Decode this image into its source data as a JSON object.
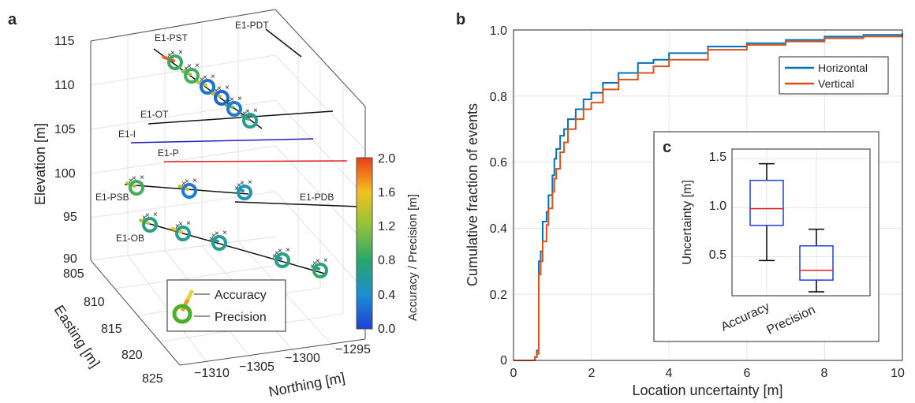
{
  "figure": {
    "panels": [
      "a",
      "b",
      "c"
    ]
  },
  "chart_data": [
    {
      "panel": "a",
      "type": "scatter",
      "zlabel": "Elevation [m]",
      "xlabel": "Easting [m]",
      "ylabel": "Northing [m]",
      "zlim": [
        90,
        115
      ],
      "zticks": [
        "115",
        "110",
        "105",
        "100",
        "95",
        "90"
      ],
      "easting_ticks": [
        "805",
        "810",
        "815",
        "820",
        "825"
      ],
      "northing_ticks": [
        "−1310",
        "−1305",
        "−1300",
        "−1295"
      ],
      "grid": true,
      "colorbar": {
        "label": "Accuracy / Precision [m]",
        "ticks": [
          "0.0",
          "0.4",
          "0.8",
          "1.2",
          "1.6",
          "2.0"
        ],
        "range": [
          0,
          2.0
        ]
      },
      "wells": [
        "E1-PST",
        "E1-PDT",
        "E1-OT",
        "E1-I",
        "E1-P",
        "E1-PSB",
        "E1-PDB",
        "E1-OB"
      ],
      "well_colors": {
        "E1-I": "#1f1fbf",
        "E1-P": "#e02020",
        "others": "#111111"
      },
      "sensors": [
        {
          "well": "E1-PST",
          "precision": 0.85,
          "accuracy": 1.9
        },
        {
          "well": "E1-PST",
          "precision": 0.9,
          "accuracy": 1.2
        },
        {
          "well": "E1-PST",
          "precision": 0.25,
          "accuracy": 1.4
        },
        {
          "well": "E1-PST",
          "precision": 0.2,
          "accuracy": 1.3
        },
        {
          "well": "E1-PST",
          "precision": 0.3,
          "accuracy": 1.0
        },
        {
          "well": "E1-PST",
          "precision": 0.65,
          "accuracy": 0.9
        },
        {
          "well": "E1-PSB",
          "precision": 0.9,
          "accuracy": 1.3
        },
        {
          "well": "E1-PSB",
          "precision": 0.3,
          "accuracy": 1.4
        },
        {
          "well": "E1-PSB",
          "precision": 0.5,
          "accuracy": 0.5
        },
        {
          "well": "E1-OB",
          "precision": 0.7,
          "accuracy": 1.4
        },
        {
          "well": "E1-OB",
          "precision": 0.65,
          "accuracy": 1.6
        },
        {
          "well": "E1-OB",
          "precision": 0.65,
          "accuracy": 0.6
        },
        {
          "well": "E1-OB",
          "precision": 0.7,
          "accuracy": 0.5
        },
        {
          "well": "E1-OB",
          "precision": 0.8,
          "accuracy": 0.6
        }
      ],
      "legend": {
        "items": [
          "Accuracy",
          "Precision"
        ],
        "placement": "bottom-center"
      }
    },
    {
      "panel": "b",
      "type": "line",
      "step": true,
      "xlabel": "Location uncertainty [m]",
      "ylabel": "Cumulative fraction of events",
      "xlim": [
        0,
        10
      ],
      "ylim": [
        0,
        1.0
      ],
      "xticks": [
        "0",
        "2",
        "4",
        "6",
        "8",
        "10"
      ],
      "yticks": [
        "0",
        "0.2",
        "0.4",
        "0.6",
        "0.8",
        "1.0"
      ],
      "grid": true,
      "legend_placement": "top-right",
      "series": [
        {
          "name": "Horizontal",
          "color": "#0072bd",
          "points": [
            [
              0,
              0
            ],
            [
              0.5,
              0
            ],
            [
              0.55,
              0.01
            ],
            [
              0.6,
              0.03
            ],
            [
              0.65,
              0.3
            ],
            [
              0.7,
              0.33
            ],
            [
              0.75,
              0.42
            ],
            [
              0.85,
              0.45
            ],
            [
              0.9,
              0.5
            ],
            [
              1.0,
              0.56
            ],
            [
              1.05,
              0.61
            ],
            [
              1.1,
              0.64
            ],
            [
              1.2,
              0.68
            ],
            [
              1.3,
              0.7
            ],
            [
              1.4,
              0.73
            ],
            [
              1.6,
              0.76
            ],
            [
              1.8,
              0.79
            ],
            [
              2.0,
              0.81
            ],
            [
              2.3,
              0.84
            ],
            [
              2.7,
              0.87
            ],
            [
              3.2,
              0.9
            ],
            [
              3.6,
              0.91
            ],
            [
              4.0,
              0.93
            ],
            [
              5.0,
              0.95
            ],
            [
              6.0,
              0.96
            ],
            [
              7.0,
              0.97
            ],
            [
              8.0,
              0.98
            ],
            [
              9.0,
              0.985
            ],
            [
              10,
              0.99
            ]
          ]
        },
        {
          "name": "Vertical",
          "color": "#d95319",
          "points": [
            [
              0,
              0
            ],
            [
              0.5,
              0
            ],
            [
              0.55,
              0.01
            ],
            [
              0.6,
              0.02
            ],
            [
              0.65,
              0.26
            ],
            [
              0.7,
              0.3
            ],
            [
              0.75,
              0.36
            ],
            [
              0.85,
              0.41
            ],
            [
              0.9,
              0.46
            ],
            [
              1.0,
              0.51
            ],
            [
              1.05,
              0.55
            ],
            [
              1.1,
              0.58
            ],
            [
              1.2,
              0.63
            ],
            [
              1.3,
              0.66
            ],
            [
              1.4,
              0.7
            ],
            [
              1.6,
              0.73
            ],
            [
              1.8,
              0.76
            ],
            [
              2.0,
              0.78
            ],
            [
              2.3,
              0.82
            ],
            [
              2.7,
              0.85
            ],
            [
              3.2,
              0.87
            ],
            [
              3.6,
              0.89
            ],
            [
              4.0,
              0.91
            ],
            [
              5.0,
              0.94
            ],
            [
              6.0,
              0.955
            ],
            [
              7.0,
              0.965
            ],
            [
              8.0,
              0.975
            ],
            [
              9.0,
              0.98
            ],
            [
              10,
              0.985
            ]
          ]
        }
      ]
    },
    {
      "panel": "c",
      "type": "box",
      "ylabel": "Uncertainty [m]",
      "categories": [
        "Accuracy",
        "Precision"
      ],
      "yticks": [
        "0.5",
        "1.0",
        "1.5"
      ],
      "ylim": [
        0.1,
        1.6
      ],
      "boxes": [
        {
          "name": "Accuracy",
          "whisker_low": 0.46,
          "q1": 0.82,
          "median": 0.99,
          "q3": 1.28,
          "whisker_high": 1.45
        },
        {
          "name": "Precision",
          "whisker_low": 0.14,
          "q1": 0.26,
          "median": 0.36,
          "q3": 0.61,
          "whisker_high": 0.78
        }
      ]
    }
  ]
}
